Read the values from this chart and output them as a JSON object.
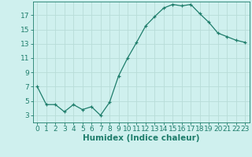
{
  "x": [
    0,
    1,
    2,
    3,
    4,
    5,
    6,
    7,
    8,
    9,
    10,
    11,
    12,
    13,
    14,
    15,
    16,
    17,
    18,
    19,
    20,
    21,
    22,
    23
  ],
  "y": [
    7,
    4.5,
    4.5,
    3.5,
    4.5,
    3.8,
    4.2,
    3.0,
    4.8,
    8.5,
    11.0,
    13.2,
    15.5,
    16.8,
    18.0,
    18.5,
    18.3,
    18.5,
    17.2,
    16.0,
    14.5,
    14.0,
    13.5,
    13.2
  ],
  "xlabel": "Humidex (Indice chaleur)",
  "ylim": [
    2.0,
    18.9
  ],
  "xlim": [
    -0.5,
    23.5
  ],
  "yticks": [
    3,
    5,
    7,
    9,
    11,
    13,
    15,
    17
  ],
  "xticks": [
    0,
    1,
    2,
    3,
    4,
    5,
    6,
    7,
    8,
    9,
    10,
    11,
    12,
    13,
    14,
    15,
    16,
    17,
    18,
    19,
    20,
    21,
    22,
    23
  ],
  "line_color": "#1e7d6b",
  "marker": "+",
  "bg_color": "#cff0ee",
  "grid_color": "#b8dcd8",
  "tick_label_color": "#1e7d6b",
  "xlabel_color": "#1e7d6b",
  "font_size": 6.5,
  "xlabel_font_size": 7.5
}
